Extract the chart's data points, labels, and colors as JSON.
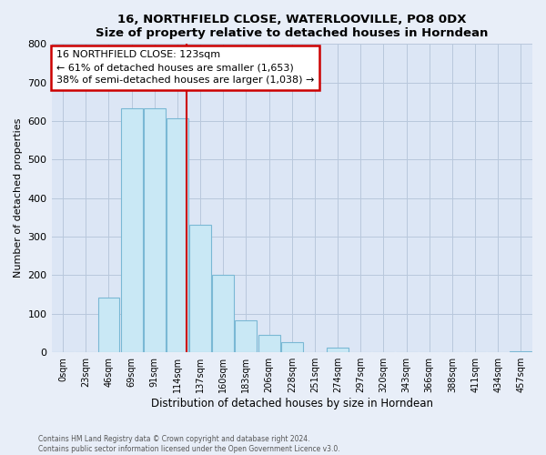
{
  "title": "16, NORTHFIELD CLOSE, WATERLOOVILLE, PO8 0DX",
  "subtitle": "Size of property relative to detached houses in Horndean",
  "xlabel": "Distribution of detached houses by size in Horndean",
  "ylabel": "Number of detached properties",
  "bar_labels": [
    "0sqm",
    "23sqm",
    "46sqm",
    "69sqm",
    "91sqm",
    "114sqm",
    "137sqm",
    "160sqm",
    "183sqm",
    "206sqm",
    "228sqm",
    "251sqm",
    "274sqm",
    "297sqm",
    "320sqm",
    "343sqm",
    "366sqm",
    "388sqm",
    "411sqm",
    "434sqm",
    "457sqm"
  ],
  "bar_heights": [
    0,
    0,
    143,
    634,
    632,
    607,
    332,
    200,
    84,
    46,
    27,
    0,
    12,
    0,
    0,
    0,
    0,
    0,
    0,
    0,
    4
  ],
  "bar_color": "#c9e8f5",
  "bar_edge_color": "#7ab8d4",
  "annotation_line1": "16 NORTHFIELD CLOSE: 123sqm",
  "annotation_line2": "← 61% of detached houses are smaller (1,653)",
  "annotation_line3": "38% of semi-detached houses are larger (1,038) →",
  "annotation_box_color": "#ffffff",
  "annotation_box_edge": "#cc0000",
  "vline_color": "#cc0000",
  "ylim": [
    0,
    800
  ],
  "yticks": [
    0,
    100,
    200,
    300,
    400,
    500,
    600,
    700,
    800
  ],
  "footer_line1": "Contains HM Land Registry data © Crown copyright and database right 2024.",
  "footer_line2": "Contains public sector information licensed under the Open Government Licence v3.0.",
  "bg_color": "#e8eef8",
  "plot_bg_color": "#dce6f5",
  "grid_color": "#b8c8dc"
}
